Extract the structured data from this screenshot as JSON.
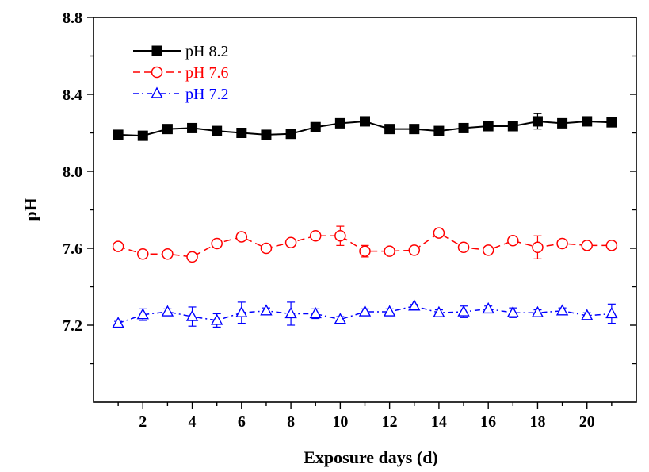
{
  "chart_data": {
    "type": "line",
    "xlabel": "Exposure days (d)",
    "ylabel": "pH",
    "xlim": [
      0,
      22
    ],
    "ylim": [
      6.8,
      8.8
    ],
    "x_ticks": [
      2,
      4,
      6,
      8,
      10,
      12,
      14,
      16,
      18,
      20
    ],
    "x_tick_labels": [
      "2",
      "4",
      "6",
      "8",
      "10",
      "12",
      "14",
      "16",
      "18",
      "20"
    ],
    "y_ticks": [
      7.2,
      7.6,
      8.0,
      8.4,
      8.8
    ],
    "y_tick_labels": [
      "7.2",
      "7.6",
      "8.0",
      "8.4",
      "8.8"
    ],
    "grid": false,
    "legend_position": "top-left",
    "x": [
      1,
      2,
      3,
      4,
      5,
      6,
      7,
      8,
      9,
      10,
      11,
      12,
      13,
      14,
      15,
      16,
      17,
      18,
      19,
      20,
      21
    ],
    "series": [
      {
        "name": "pH 8.2",
        "color": "#000000",
        "marker": "filled-square",
        "line_style": "solid",
        "values": [
          8.19,
          8.185,
          8.22,
          8.225,
          8.21,
          8.2,
          8.19,
          8.195,
          8.23,
          8.25,
          8.26,
          8.22,
          8.22,
          8.21,
          8.225,
          8.235,
          8.235,
          8.26,
          8.25,
          8.26,
          8.255
        ],
        "errors": [
          0.005,
          0.005,
          0.008,
          0.005,
          0.005,
          0.005,
          0.005,
          0.005,
          0.005,
          0.008,
          0.008,
          0.005,
          0.005,
          0.005,
          0.005,
          0.005,
          0.005,
          0.04,
          0.02,
          0.008,
          0.008
        ]
      },
      {
        "name": "pH 7.6",
        "color": "#ff0000",
        "marker": "open-circle",
        "line_style": "dashed",
        "values": [
          7.61,
          7.57,
          7.57,
          7.555,
          7.625,
          7.66,
          7.6,
          7.63,
          7.665,
          7.665,
          7.585,
          7.585,
          7.59,
          7.68,
          7.605,
          7.59,
          7.64,
          7.605,
          7.625,
          7.615,
          7.615
        ],
        "errors": [
          0.012,
          0.012,
          0.012,
          0.012,
          0.015,
          0.008,
          0.015,
          0.015,
          0.012,
          0.05,
          0.03,
          0.008,
          0.008,
          0.008,
          0.012,
          0.008,
          0.015,
          0.06,
          0.008,
          0.008,
          0.012
        ]
      },
      {
        "name": "pH 7.2",
        "color": "#0000ff",
        "marker": "open-triangle",
        "line_style": "dash-dot",
        "values": [
          7.21,
          7.255,
          7.27,
          7.245,
          7.225,
          7.265,
          7.275,
          7.26,
          7.26,
          7.23,
          7.27,
          7.27,
          7.3,
          7.265,
          7.27,
          7.285,
          7.265,
          7.265,
          7.275,
          7.25,
          7.26
        ],
        "errors": [
          0.01,
          0.03,
          0.015,
          0.05,
          0.035,
          0.055,
          0.015,
          0.06,
          0.025,
          0.015,
          0.015,
          0.015,
          0.008,
          0.015,
          0.03,
          0.015,
          0.025,
          0.015,
          0.015,
          0.015,
          0.05
        ]
      }
    ]
  }
}
